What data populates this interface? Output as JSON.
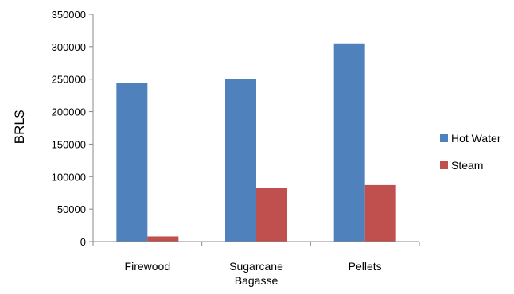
{
  "chart_data": {
    "type": "bar",
    "categories": [
      "Firewood",
      "Sugarcane Bagasse",
      "Pellets"
    ],
    "category_lines": [
      [
        "Firewood"
      ],
      [
        "Sugarcane",
        "Bagasse"
      ],
      [
        "Pellets"
      ]
    ],
    "series": [
      {
        "name": "Hot Water",
        "values": [
          244000,
          250000,
          305000
        ],
        "color": "#4F81BD"
      },
      {
        "name": "Steam",
        "values": [
          8000,
          82000,
          87000
        ],
        "color": "#C0504D"
      }
    ],
    "title": "",
    "xlabel": "",
    "ylabel": "BRL$",
    "ylim": [
      0,
      350000
    ],
    "yticks": [
      0,
      50000,
      100000,
      150000,
      200000,
      250000,
      300000,
      350000
    ],
    "ytick_labels": [
      "0",
      "50000",
      "100000",
      "150000",
      "200000",
      "250000",
      "300000",
      "350000"
    ],
    "grid": false,
    "legend_position": "right"
  }
}
